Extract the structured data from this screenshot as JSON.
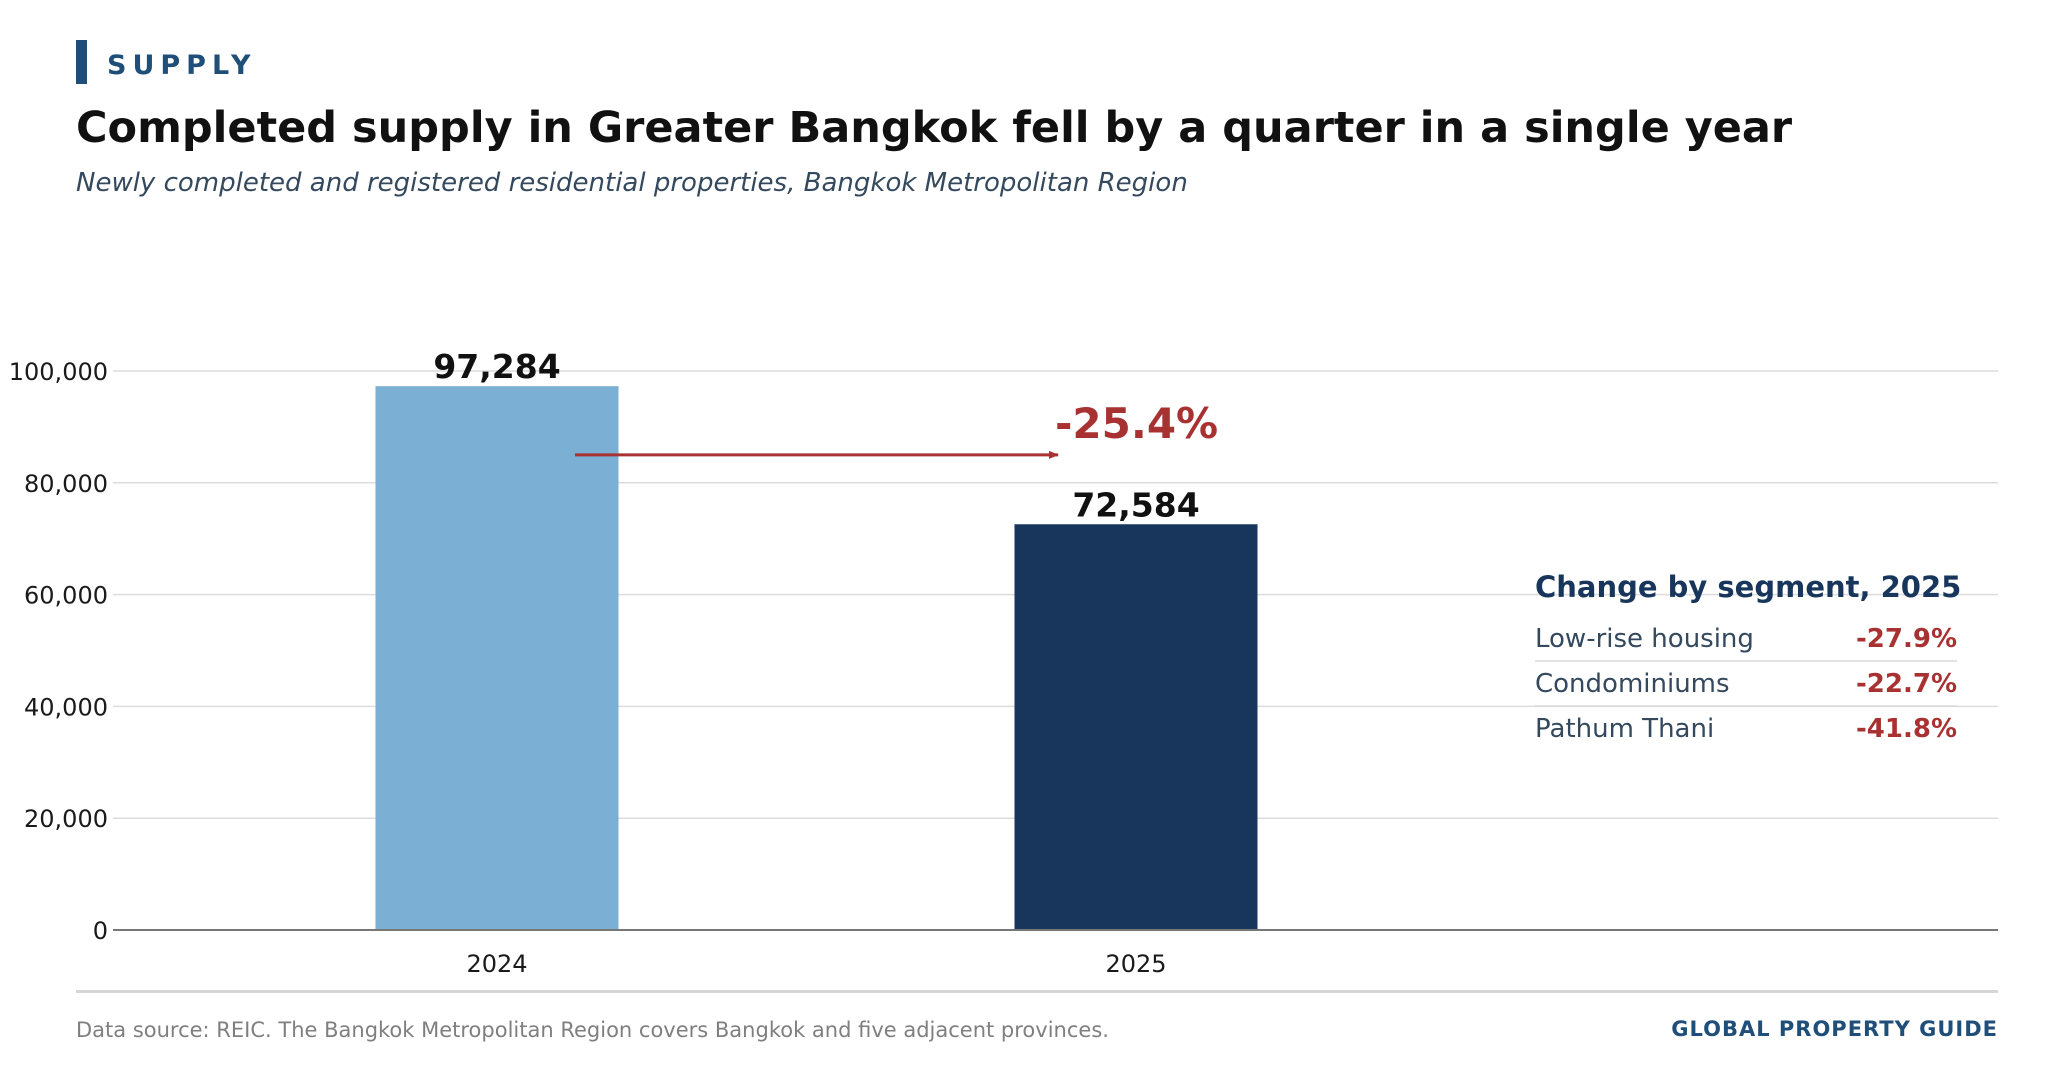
{
  "header": {
    "kicker": "SUPPLY",
    "title": "Completed supply in Greater Bangkok fell by a quarter in a single year",
    "subtitle": "Newly completed and registered residential properties, Bangkok Metropolitan Region"
  },
  "chart_data": {
    "type": "bar",
    "title": "Completed supply in Greater Bangkok fell by a quarter in a single year",
    "subtitle": "Newly completed and registered residential properties, Bangkok Metropolitan Region",
    "categories": [
      "2024",
      "2025"
    ],
    "values": [
      97284,
      72584
    ],
    "value_labels": [
      "97,284",
      "72,584"
    ],
    "bar_colors": [
      "#7bafd4",
      "#18365c"
    ],
    "ylim": [
      0,
      100000
    ],
    "yticks": [
      0,
      20000,
      40000,
      60000,
      80000,
      100000
    ],
    "ytick_labels": [
      "0",
      "20,000",
      "40,000",
      "60,000",
      "80,000",
      "100,000"
    ],
    "xlabel": "",
    "ylabel": "",
    "grid": true,
    "change_annotation": {
      "text": "-25.4%",
      "arrow_level": 85000,
      "color": "#a83232"
    }
  },
  "segment_panel": {
    "title": "Change by segment, 2025",
    "rows": [
      {
        "label": "Low-rise housing",
        "value": "-27.9%"
      },
      {
        "label": "Condominiums",
        "value": "-22.7%"
      },
      {
        "label": "Pathum Thani",
        "value": "-41.8%"
      }
    ]
  },
  "footer": {
    "source": "Data source: REIC. The Bangkok Metropolitan Region covers Bangkok and five adjacent provinces.",
    "brand": "GLOBAL PROPERTY GUIDE"
  },
  "colors": {
    "accent": "#1f4e79",
    "negative": "#a83232",
    "bar_2024": "#7bafd4",
    "bar_2025": "#18365c",
    "panel_title": "#18365c",
    "text_muted": "#34495e"
  }
}
